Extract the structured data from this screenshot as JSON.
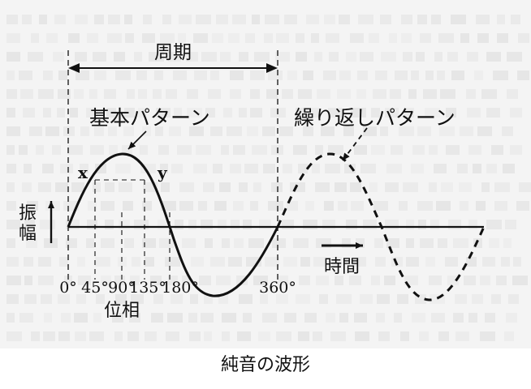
{
  "labels": {
    "period": "周期",
    "basic_pattern": "基本パターン",
    "repeat_pattern": "繰り返しパターン",
    "point_x": "x",
    "point_y": "y",
    "amplitude_1": "振",
    "amplitude_2": "幅",
    "time": "時間",
    "phase": "位相"
  },
  "phase_ticks": [
    "0°",
    "45°",
    "90°",
    "135°",
    "180°",
    "360°"
  ],
  "caption": "純音の波形",
  "colors": {
    "ink": "#111111",
    "page": "#f4f4f4",
    "background_text": "#dcdcdc"
  }
}
